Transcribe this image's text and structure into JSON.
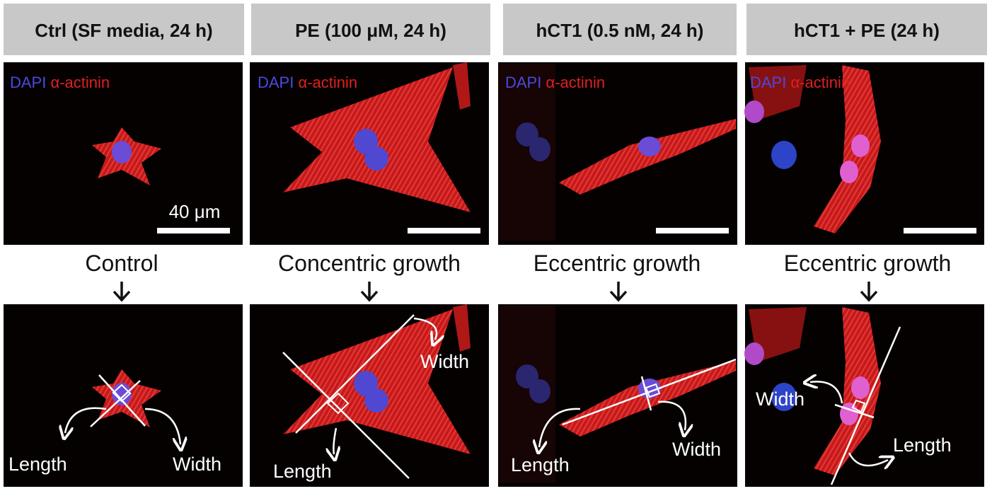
{
  "scale_bar_label": "40 μm",
  "panels": [
    {
      "header": "Ctrl (SF media, 24 h)",
      "stain_dapi": "DAPI",
      "stain_actinin": "α-actinin",
      "growth": "Control",
      "length_label": "Length",
      "width_label": "Width"
    },
    {
      "header": "PE (100 μM, 24 h)",
      "stain_dapi": "DAPI",
      "stain_actinin": "α-actinin",
      "growth": "Concentric growth",
      "length_label": "Length",
      "width_label": "Width"
    },
    {
      "header": "hCT1 (0.5 nM, 24 h)",
      "stain_dapi": "DAPI",
      "stain_actinin": "α-actinin",
      "growth": "Eccentric growth",
      "length_label": "Length",
      "width_label": "Width"
    },
    {
      "header": "hCT1 + PE (24 h)",
      "stain_dapi": "DAPI",
      "stain_actinin": "α-actinin",
      "growth": "Eccentric growth",
      "length_label": "Length",
      "width_label": "Width"
    }
  ]
}
